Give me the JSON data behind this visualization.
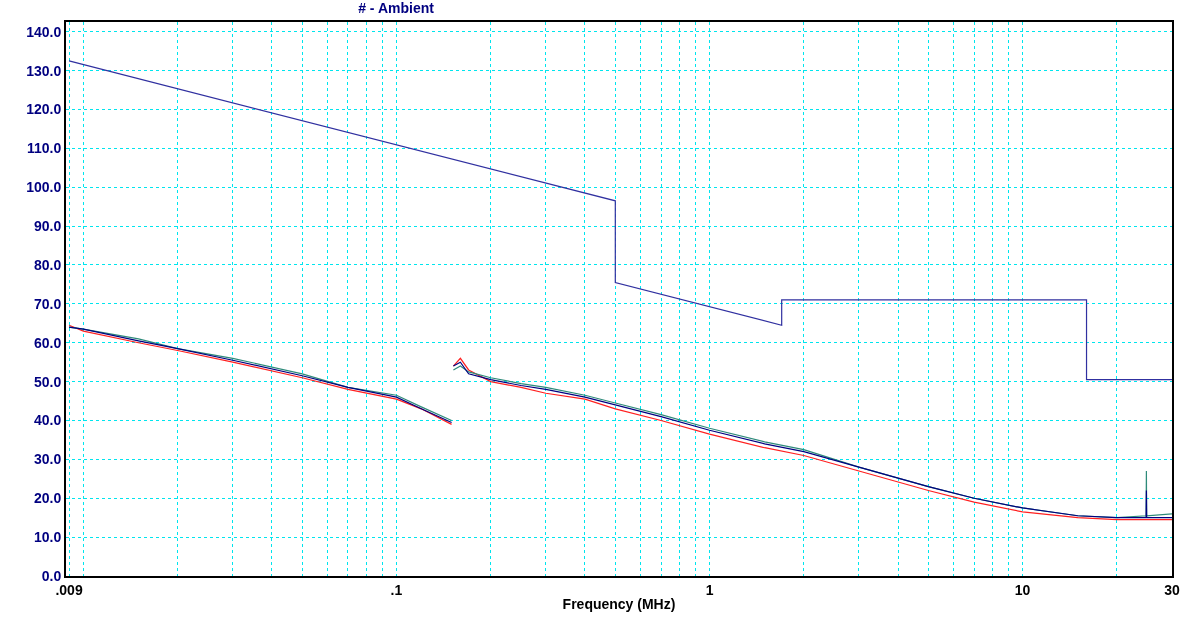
{
  "chart_data": {
    "type": "line",
    "title": "# - Ambient",
    "xlabel": "Frequency (MHz)",
    "log": "x",
    "grid": true,
    "marker": "none",
    "line_style": "solid",
    "xlim": [
      0.0088,
      30
    ],
    "xticks": [
      {
        "value": 0.009,
        "label": ".009"
      },
      {
        "value": 0.01,
        "label": null
      },
      {
        "value": 0.02,
        "label": null
      },
      {
        "value": 0.03,
        "label": null
      },
      {
        "value": 0.04,
        "label": null
      },
      {
        "value": 0.05,
        "label": null
      },
      {
        "value": 0.06,
        "label": null
      },
      {
        "value": 0.07,
        "label": null
      },
      {
        "value": 0.08,
        "label": null
      },
      {
        "value": 0.09,
        "label": null
      },
      {
        "value": 0.1,
        "label": ".1"
      },
      {
        "value": 0.2,
        "label": null
      },
      {
        "value": 0.3,
        "label": null
      },
      {
        "value": 0.4,
        "label": null
      },
      {
        "value": 0.5,
        "label": null
      },
      {
        "value": 0.6,
        "label": null
      },
      {
        "value": 0.7,
        "label": null
      },
      {
        "value": 0.8,
        "label": null
      },
      {
        "value": 0.9,
        "label": null
      },
      {
        "value": 1,
        "label": "1"
      },
      {
        "value": 2,
        "label": null
      },
      {
        "value": 3,
        "label": null
      },
      {
        "value": 4,
        "label": null
      },
      {
        "value": 5,
        "label": null
      },
      {
        "value": 6,
        "label": null
      },
      {
        "value": 7,
        "label": null
      },
      {
        "value": 8,
        "label": null
      },
      {
        "value": 9,
        "label": null
      },
      {
        "value": 10,
        "label": "10"
      },
      {
        "value": 20,
        "label": null
      },
      {
        "value": 30,
        "label": "30"
      }
    ],
    "ylim": [
      0,
      142.5
    ],
    "yticks": [
      {
        "value": 0,
        "label": "0.0"
      },
      {
        "value": 10,
        "label": "10.0"
      },
      {
        "value": 20,
        "label": "20.0"
      },
      {
        "value": 30,
        "label": "30.0"
      },
      {
        "value": 40,
        "label": "40.0"
      },
      {
        "value": 50,
        "label": "50.0"
      },
      {
        "value": 60,
        "label": "60.0"
      },
      {
        "value": 70,
        "label": "70.0"
      },
      {
        "value": 80,
        "label": "80.0"
      },
      {
        "value": 90,
        "label": "90.0"
      },
      {
        "value": 100,
        "label": "100.0"
      },
      {
        "value": 110,
        "label": "110.0"
      },
      {
        "value": 120,
        "label": "120.0"
      },
      {
        "value": 130,
        "label": "130.0"
      },
      {
        "value": 140,
        "label": "140.0"
      }
    ],
    "series": [
      {
        "color": "#ff2020",
        "x": [
          0.009,
          0.01,
          0.015,
          0.02,
          0.03,
          0.05,
          0.07,
          0.1,
          0.12,
          0.15,
          0.151,
          0.152,
          0.16,
          0.17,
          0.2,
          0.25,
          0.3,
          0.4,
          0.5,
          0.7,
          1,
          1.5,
          2,
          3,
          5,
          7,
          10,
          15,
          20,
          24.8,
          25,
          30
        ],
        "values": [
          64.5,
          63,
          60,
          58,
          55,
          51,
          48,
          45.5,
          43,
          39,
          null,
          54,
          56,
          53,
          50,
          48.5,
          47,
          45.5,
          43,
          40,
          36.5,
          33,
          31,
          27,
          22,
          19,
          16.5,
          15,
          14.5,
          14.5,
          14.5,
          14.5
        ]
      },
      {
        "color": "#2e8b7a",
        "x": [
          0.009,
          0.01,
          0.015,
          0.02,
          0.03,
          0.05,
          0.07,
          0.1,
          0.12,
          0.15,
          0.151,
          0.152,
          0.16,
          0.17,
          0.2,
          0.25,
          0.3,
          0.4,
          0.5,
          0.7,
          1,
          1.5,
          2,
          3,
          5,
          7,
          10,
          15,
          20,
          24.8,
          24.85,
          24.9,
          30
        ],
        "values": [
          64,
          63.5,
          61,
          58.5,
          56,
          52,
          48.5,
          46.5,
          43.5,
          40,
          null,
          53,
          54,
          52.5,
          51,
          49.5,
          48.5,
          46.5,
          44.5,
          41.5,
          38,
          34.5,
          32.5,
          28,
          23,
          20,
          17.5,
          15.5,
          15,
          15.5,
          27,
          15.5,
          16
        ]
      },
      {
        "color": "#000080",
        "x": [
          0.009,
          0.01,
          0.015,
          0.02,
          0.03,
          0.05,
          0.07,
          0.1,
          0.12,
          0.15,
          0.151,
          0.152,
          0.16,
          0.17,
          0.2,
          0.25,
          0.3,
          0.4,
          0.5,
          0.7,
          1,
          1.5,
          2,
          3,
          5,
          7,
          10,
          15,
          20,
          24.8,
          24.85,
          24.9,
          30
        ],
        "values": [
          64,
          63.5,
          60.5,
          58.5,
          55.5,
          51.5,
          48.5,
          46,
          43,
          39.5,
          null,
          54,
          55,
          52,
          50.5,
          49,
          48,
          46,
          44,
          41,
          37.5,
          34,
          32,
          28,
          23,
          20,
          17.5,
          15.5,
          15,
          15,
          22,
          15,
          15
        ]
      },
      {
        "color": "#3030a0",
        "x": [
          0.009,
          0.5,
          0.5,
          1.7,
          1.7,
          16,
          16,
          30
        ],
        "values": [
          132.5,
          96.5,
          75.5,
          64.5,
          71,
          71,
          50.5,
          50.5
        ]
      }
    ]
  }
}
